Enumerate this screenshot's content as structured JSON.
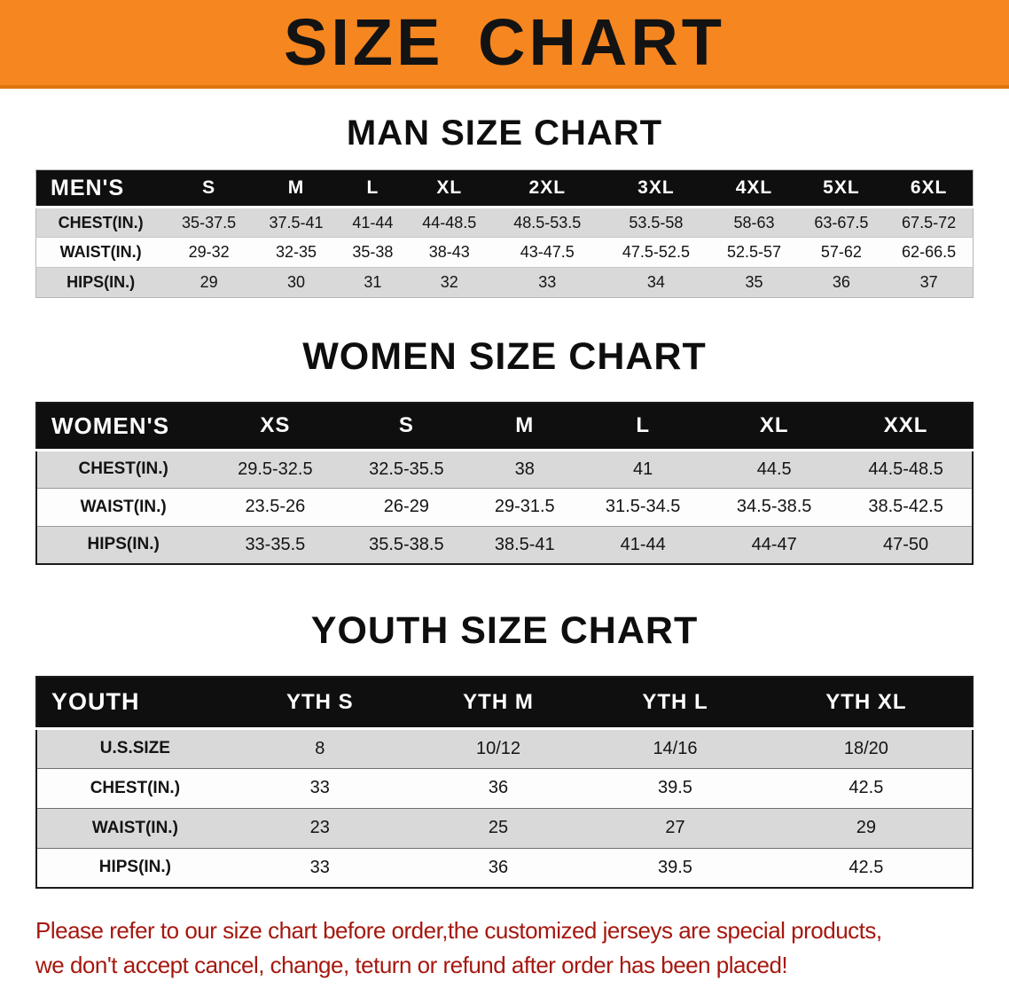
{
  "banner": {
    "title": "SIZE CHART",
    "bg_color": "#F6861F",
    "text_color": "#131313"
  },
  "men": {
    "heading": "MAN SIZE CHART",
    "label": "MEN'S",
    "columns": [
      "S",
      "M",
      "L",
      "XL",
      "2XL",
      "3XL",
      "4XL",
      "5XL",
      "6XL"
    ],
    "rows": [
      {
        "label": "CHEST(IN.)",
        "values": [
          "35-37.5",
          "37.5-41",
          "41-44",
          "44-48.5",
          "48.5-53.5",
          "53.5-58",
          "58-63",
          "63-67.5",
          "67.5-72"
        ]
      },
      {
        "label": "WAIST(IN.)",
        "values": [
          "29-32",
          "32-35",
          "35-38",
          "38-43",
          "43-47.5",
          "47.5-52.5",
          "52.5-57",
          "57-62",
          "62-66.5"
        ]
      },
      {
        "label": "HIPS(IN.)",
        "values": [
          "29",
          "30",
          "31",
          "32",
          "33",
          "34",
          "35",
          "36",
          "37"
        ]
      }
    ]
  },
  "women": {
    "heading": "WOMEN SIZE CHART",
    "label": "WOMEN'S",
    "columns": [
      "XS",
      "S",
      "M",
      "L",
      "XL",
      "XXL"
    ],
    "rows": [
      {
        "label": "CHEST(IN.)",
        "values": [
          "29.5-32.5",
          "32.5-35.5",
          "38",
          "41",
          "44.5",
          "44.5-48.5"
        ]
      },
      {
        "label": "WAIST(IN.)",
        "values": [
          "23.5-26",
          "26-29",
          "29-31.5",
          "31.5-34.5",
          "34.5-38.5",
          "38.5-42.5"
        ]
      },
      {
        "label": "HIPS(IN.)",
        "values": [
          "33-35.5",
          "35.5-38.5",
          "38.5-41",
          "41-44",
          "44-47",
          "47-50"
        ]
      }
    ]
  },
  "youth": {
    "heading": "YOUTH SIZE CHART",
    "label": "YOUTH",
    "columns": [
      "YTH S",
      "YTH M",
      "YTH L",
      "YTH XL"
    ],
    "rows": [
      {
        "label": "U.S.SIZE",
        "values": [
          "8",
          "10/12",
          "14/16",
          "18/20"
        ]
      },
      {
        "label": "CHEST(IN.)",
        "values": [
          "33",
          "36",
          "39.5",
          "42.5"
        ]
      },
      {
        "label": "WAIST(IN.)",
        "values": [
          "23",
          "25",
          "27",
          "29"
        ]
      },
      {
        "label": "HIPS(IN.)",
        "values": [
          "33",
          "36",
          "39.5",
          "42.5"
        ]
      }
    ]
  },
  "disclaimer": {
    "line1": "Please refer to our size chart before order,the customized jerseys are special products,",
    "line2": "we don't accept cancel, change, teturn or refund after order has been placed!",
    "text_color": "#A5180F"
  },
  "colors": {
    "banner_orange": "#F6861F",
    "table_header_black": "#0F0F0F",
    "row_gray": "#D9D9D9",
    "row_white": "#FDFDFD",
    "disclaimer_red": "#A5180F"
  }
}
